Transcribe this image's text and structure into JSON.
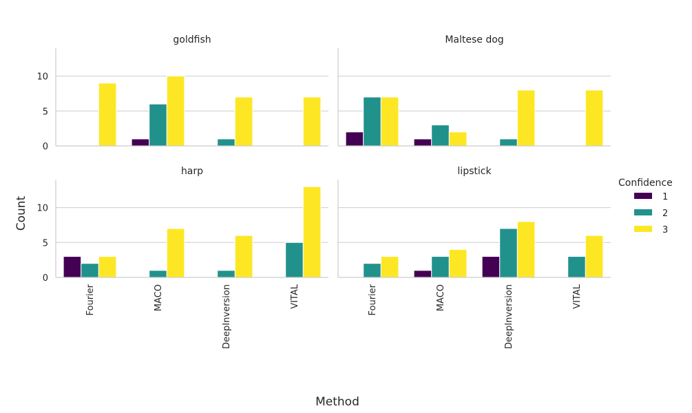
{
  "chart_data": {
    "type": "bar",
    "layout": "facet-grid 2x2",
    "xlabel": "Method",
    "ylabel": "Count",
    "ylim": [
      0,
      14
    ],
    "yticks": [
      0,
      5,
      10
    ],
    "grid": true,
    "categories": [
      "Fourier",
      "MACO",
      "DeepInversion",
      "VITAL"
    ],
    "legend": {
      "title": "Confidence",
      "placement": "right",
      "entries": [
        "1",
        "2",
        "3"
      ]
    },
    "colors": [
      "#440154",
      "#21918c",
      "#fde725"
    ],
    "facets": [
      {
        "title": "goldfish",
        "series": [
          {
            "name": "1",
            "values": [
              0,
              1,
              0,
              0
            ]
          },
          {
            "name": "2",
            "values": [
              0,
              6,
              1,
              0
            ]
          },
          {
            "name": "3",
            "values": [
              9,
              10,
              7,
              7
            ]
          }
        ]
      },
      {
        "title": "Maltese dog",
        "series": [
          {
            "name": "1",
            "values": [
              2,
              1,
              0,
              0
            ]
          },
          {
            "name": "2",
            "values": [
              7,
              3,
              1,
              0
            ]
          },
          {
            "name": "3",
            "values": [
              7,
              2,
              8,
              8
            ]
          }
        ]
      },
      {
        "title": "harp",
        "series": [
          {
            "name": "1",
            "values": [
              3,
              0,
              0,
              0
            ]
          },
          {
            "name": "2",
            "values": [
              2,
              1,
              1,
              5
            ]
          },
          {
            "name": "3",
            "values": [
              3,
              7,
              6,
              13
            ]
          }
        ]
      },
      {
        "title": "lipstick",
        "series": [
          {
            "name": "1",
            "values": [
              0,
              1,
              3,
              0
            ]
          },
          {
            "name": "2",
            "values": [
              2,
              3,
              7,
              3
            ]
          },
          {
            "name": "3",
            "values": [
              3,
              4,
              8,
              6
            ]
          }
        ]
      }
    ]
  }
}
